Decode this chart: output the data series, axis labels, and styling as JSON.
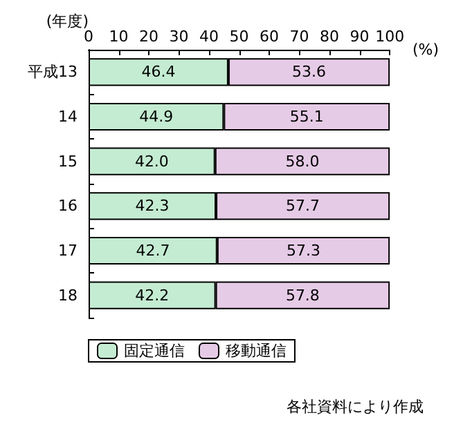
{
  "chart_data": {
    "type": "bar",
    "orientation": "horizontal",
    "stacked": true,
    "categories": [
      "平成13",
      "14",
      "15",
      "16",
      "17",
      "18"
    ],
    "series": [
      {
        "name": "固定通信",
        "color": "#c4ecd2",
        "values": [
          46.4,
          44.9,
          42.0,
          42.3,
          42.7,
          42.2
        ],
        "value_labels": [
          "46.4",
          "44.9",
          "42.0",
          "42.3",
          "42.7",
          "42.2"
        ]
      },
      {
        "name": "移動通信",
        "color": "#e6cbe6",
        "values": [
          53.6,
          55.1,
          58.0,
          57.7,
          57.3,
          57.8
        ],
        "value_labels": [
          "53.6",
          "55.1",
          "58.0",
          "57.7",
          "57.3",
          "57.8"
        ]
      }
    ],
    "xlim": [
      0,
      100
    ],
    "xticks": [
      0,
      10,
      20,
      30,
      40,
      50,
      60,
      70,
      80,
      90,
      100
    ],
    "xlabel": "(%)",
    "ylabel": "(年度)",
    "legend": "bottom",
    "grid": false,
    "annotations": [
      "各社資料により作成"
    ]
  }
}
